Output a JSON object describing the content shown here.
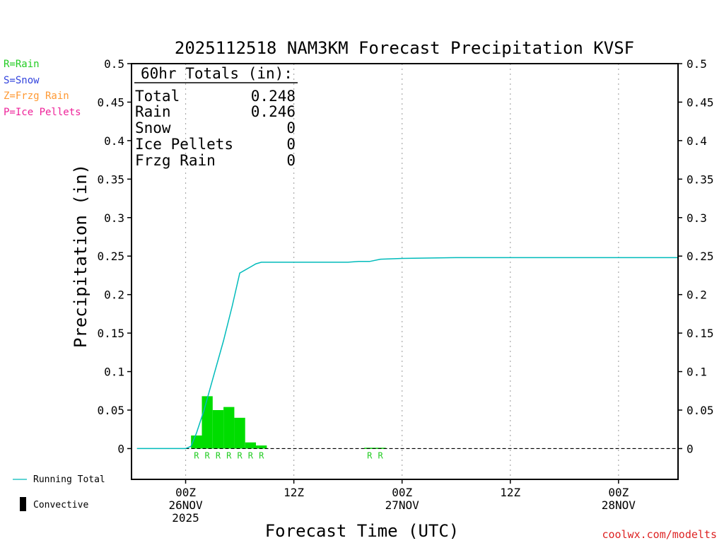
{
  "chart_data": {
    "type": "bar",
    "title": "2025112518 NAM3KM Forecast Precipitation KVSF",
    "xlabel": "Forecast Time (UTC)",
    "ylabel": "Precipitation (in)",
    "ylim": [
      -0.04,
      0.5
    ],
    "y_ticks": [
      0,
      0.05,
      0.1,
      0.15,
      0.2,
      0.25,
      0.3,
      0.35,
      0.4,
      0.45,
      0.5
    ],
    "y_tick_labels": [
      "0",
      "0.05",
      "0.1",
      "0.15",
      "0.2",
      "0.25",
      "0.3",
      "0.35",
      "0.4",
      "0.45",
      "0.5"
    ],
    "x_range_hours": [
      -5,
      45.5
    ],
    "x_ticks": [
      {
        "hour": 0,
        "lines": [
          "00Z",
          "26NOV",
          "2025"
        ]
      },
      {
        "hour": 10,
        "lines": [
          "12Z"
        ]
      },
      {
        "hour": 20,
        "lines": [
          "00Z",
          "27NOV"
        ]
      },
      {
        "hour": 30,
        "lines": [
          "12Z"
        ]
      },
      {
        "hour": 40,
        "lines": [
          "00Z",
          "28NOV"
        ]
      }
    ],
    "grid": "vertical-dotted",
    "bars": {
      "name": "Rain",
      "color": "#00dd00",
      "hours": [
        1,
        2,
        3,
        4,
        5,
        6,
        7,
        17,
        18
      ],
      "values": [
        0.017,
        0.068,
        0.05,
        0.054,
        0.04,
        0.008,
        0.004,
        0.001,
        0.001
      ],
      "ptype_labels": [
        "R",
        "R",
        "R",
        "R",
        "R",
        "R",
        "R",
        "R",
        "R"
      ]
    },
    "running_total": {
      "name": "Running Total",
      "color": "#00bbbb",
      "hours": [
        -4.5,
        0,
        0.5,
        1,
        1.7,
        2.5,
        3.5,
        4.3,
        5,
        6,
        6.5,
        7,
        7.5,
        8,
        10,
        13,
        15,
        16,
        17,
        18,
        20,
        25,
        30,
        45.5
      ],
      "values": [
        0,
        0,
        0.003,
        0.02,
        0.05,
        0.09,
        0.14,
        0.185,
        0.228,
        0.236,
        0.24,
        0.242,
        0.242,
        0.242,
        0.242,
        0.242,
        0.242,
        0.243,
        0.243,
        0.246,
        0.247,
        0.248,
        0.248,
        0.248
      ]
    },
    "totals_box": {
      "heading": "60hr Totals (in):",
      "rows": [
        {
          "label": "Total",
          "value": "0.248"
        },
        {
          "label": "Rain",
          "value": "0.246"
        },
        {
          "label": "Snow",
          "value": "0"
        },
        {
          "label": "Ice Pellets",
          "value": "0"
        },
        {
          "label": "Frzg Rain",
          "value": "0"
        }
      ]
    },
    "ptype_legend": [
      {
        "text": "R=Rain",
        "color": "#22cc22"
      },
      {
        "text": "S=Snow",
        "color": "#3344dd"
      },
      {
        "text": "Z=Frzg Rain",
        "color": "#ff9933"
      },
      {
        "text": "P=Ice Pellets",
        "color": "#ee2299"
      }
    ],
    "bottom_legend": [
      {
        "text": "Running Total",
        "kind": "line",
        "color": "#00bbbb"
      },
      {
        "text": "Convective",
        "kind": "bar",
        "color": "#000000"
      }
    ],
    "credit": "coolwx.com/modelts",
    "credit_color": "#dd2222"
  }
}
